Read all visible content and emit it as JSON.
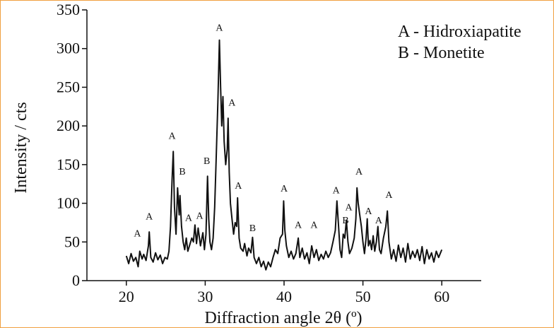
{
  "chart_data": {
    "type": "line",
    "xlabel": "Diffraction angle 2θ (º)",
    "ylabel": "Intensity / cts",
    "xlim": [
      15,
      65
    ],
    "ylim": [
      0,
      350
    ],
    "x_ticks": [
      20,
      30,
      40,
      50,
      60
    ],
    "y_ticks": [
      0,
      50,
      100,
      150,
      200,
      250,
      300,
      350
    ],
    "grid": false,
    "legend_position": "top-right",
    "legend": [
      "A - Hidroxiapatite",
      "B - Monetite"
    ],
    "series": [
      {
        "points": [
          [
            20.0,
            32
          ],
          [
            20.3,
            22
          ],
          [
            20.6,
            35
          ],
          [
            20.9,
            25
          ],
          [
            21.2,
            30
          ],
          [
            21.5,
            18
          ],
          [
            21.7,
            38
          ],
          [
            22.0,
            28
          ],
          [
            22.2,
            34
          ],
          [
            22.5,
            26
          ],
          [
            22.8,
            45
          ],
          [
            22.9,
            63
          ],
          [
            23.1,
            30
          ],
          [
            23.4,
            24
          ],
          [
            23.7,
            36
          ],
          [
            24.0,
            27
          ],
          [
            24.3,
            33
          ],
          [
            24.6,
            22
          ],
          [
            24.9,
            30
          ],
          [
            25.2,
            28
          ],
          [
            25.4,
            38
          ],
          [
            25.6,
            70
          ],
          [
            25.8,
            130
          ],
          [
            25.95,
            167
          ],
          [
            26.1,
            95
          ],
          [
            26.3,
            60
          ],
          [
            26.5,
            120
          ],
          [
            26.7,
            85
          ],
          [
            26.8,
            110
          ],
          [
            27.0,
            70
          ],
          [
            27.2,
            50
          ],
          [
            27.4,
            40
          ],
          [
            27.6,
            55
          ],
          [
            27.8,
            38
          ],
          [
            28.0,
            45
          ],
          [
            28.3,
            55
          ],
          [
            28.5,
            50
          ],
          [
            28.7,
            72
          ],
          [
            28.9,
            48
          ],
          [
            29.1,
            68
          ],
          [
            29.4,
            45
          ],
          [
            29.7,
            62
          ],
          [
            29.9,
            40
          ],
          [
            30.1,
            60
          ],
          [
            30.3,
            135
          ],
          [
            30.45,
            80
          ],
          [
            30.6,
            50
          ],
          [
            30.8,
            40
          ],
          [
            31.0,
            55
          ],
          [
            31.2,
            95
          ],
          [
            31.4,
            160
          ],
          [
            31.6,
            230
          ],
          [
            31.8,
            311
          ],
          [
            31.95,
            250
          ],
          [
            32.1,
            200
          ],
          [
            32.25,
            238
          ],
          [
            32.4,
            180
          ],
          [
            32.6,
            150
          ],
          [
            32.8,
            170
          ],
          [
            32.9,
            210
          ],
          [
            33.05,
            140
          ],
          [
            33.2,
            100
          ],
          [
            33.4,
            80
          ],
          [
            33.6,
            60
          ],
          [
            33.8,
            75
          ],
          [
            34.0,
            70
          ],
          [
            34.1,
            107
          ],
          [
            34.3,
            55
          ],
          [
            34.5,
            42
          ],
          [
            34.8,
            38
          ],
          [
            35.0,
            48
          ],
          [
            35.3,
            32
          ],
          [
            35.5,
            42
          ],
          [
            35.8,
            36
          ],
          [
            36.0,
            56
          ],
          [
            36.2,
            30
          ],
          [
            36.5,
            22
          ],
          [
            36.8,
            30
          ],
          [
            37.1,
            18
          ],
          [
            37.4,
            25
          ],
          [
            37.7,
            14
          ],
          [
            38.0,
            24
          ],
          [
            38.3,
            18
          ],
          [
            38.6,
            30
          ],
          [
            38.9,
            40
          ],
          [
            39.2,
            35
          ],
          [
            39.5,
            55
          ],
          [
            39.8,
            60
          ],
          [
            39.95,
            103
          ],
          [
            40.1,
            65
          ],
          [
            40.3,
            45
          ],
          [
            40.6,
            30
          ],
          [
            40.9,
            38
          ],
          [
            41.2,
            28
          ],
          [
            41.5,
            35
          ],
          [
            41.8,
            55
          ],
          [
            42.0,
            30
          ],
          [
            42.3,
            42
          ],
          [
            42.6,
            28
          ],
          [
            42.9,
            36
          ],
          [
            43.2,
            22
          ],
          [
            43.5,
            45
          ],
          [
            43.8,
            30
          ],
          [
            44.1,
            40
          ],
          [
            44.4,
            26
          ],
          [
            44.7,
            34
          ],
          [
            45.0,
            28
          ],
          [
            45.3,
            38
          ],
          [
            45.6,
            30
          ],
          [
            45.9,
            36
          ],
          [
            46.2,
            50
          ],
          [
            46.5,
            65
          ],
          [
            46.7,
            103
          ],
          [
            46.9,
            72
          ],
          [
            47.1,
            40
          ],
          [
            47.3,
            30
          ],
          [
            47.5,
            60
          ],
          [
            47.7,
            55
          ],
          [
            47.9,
            78
          ],
          [
            48.1,
            50
          ],
          [
            48.3,
            35
          ],
          [
            48.6,
            42
          ],
          [
            48.9,
            55
          ],
          [
            49.1,
            80
          ],
          [
            49.25,
            120
          ],
          [
            49.4,
            100
          ],
          [
            49.6,
            85
          ],
          [
            49.8,
            70
          ],
          [
            50.0,
            50
          ],
          [
            50.2,
            35
          ],
          [
            50.4,
            55
          ],
          [
            50.55,
            80
          ],
          [
            50.7,
            45
          ],
          [
            50.9,
            52
          ],
          [
            51.1,
            40
          ],
          [
            51.3,
            58
          ],
          [
            51.5,
            38
          ],
          [
            51.7,
            50
          ],
          [
            51.9,
            70
          ],
          [
            52.1,
            40
          ],
          [
            52.3,
            35
          ],
          [
            52.6,
            55
          ],
          [
            52.9,
            70
          ],
          [
            53.1,
            90
          ],
          [
            53.3,
            50
          ],
          [
            53.6,
            28
          ],
          [
            53.9,
            40
          ],
          [
            54.2,
            25
          ],
          [
            54.5,
            46
          ],
          [
            54.8,
            30
          ],
          [
            55.1,
            42
          ],
          [
            55.4,
            24
          ],
          [
            55.7,
            48
          ],
          [
            56.0,
            28
          ],
          [
            56.3,
            38
          ],
          [
            56.6,
            30
          ],
          [
            56.9,
            40
          ],
          [
            57.2,
            26
          ],
          [
            57.5,
            44
          ],
          [
            57.8,
            22
          ],
          [
            58.1,
            40
          ],
          [
            58.4,
            28
          ],
          [
            58.7,
            36
          ],
          [
            59.0,
            24
          ],
          [
            59.3,
            38
          ],
          [
            59.6,
            30
          ],
          [
            60.0,
            40
          ]
        ]
      }
    ],
    "annotations": [
      {
        "text": "A",
        "x": 21.4,
        "y": 57
      },
      {
        "text": "A",
        "x": 22.9,
        "y": 79
      },
      {
        "text": "A",
        "x": 25.8,
        "y": 183
      },
      {
        "text": "B",
        "x": 27.1,
        "y": 137
      },
      {
        "text": "A",
        "x": 27.9,
        "y": 77
      },
      {
        "text": "A",
        "x": 29.3,
        "y": 80
      },
      {
        "text": "B",
        "x": 30.2,
        "y": 151
      },
      {
        "text": "A",
        "x": 31.8,
        "y": 323
      },
      {
        "text": "A",
        "x": 33.4,
        "y": 226
      },
      {
        "text": "A",
        "x": 34.2,
        "y": 119
      },
      {
        "text": "B",
        "x": 36.0,
        "y": 64
      },
      {
        "text": "A",
        "x": 40.0,
        "y": 115
      },
      {
        "text": "A",
        "x": 41.8,
        "y": 68
      },
      {
        "text": "A",
        "x": 43.8,
        "y": 68
      },
      {
        "text": "A",
        "x": 46.6,
        "y": 113
      },
      {
        "text": "B",
        "x": 47.8,
        "y": 74
      },
      {
        "text": "A",
        "x": 48.2,
        "y": 91
      },
      {
        "text": "A",
        "x": 49.5,
        "y": 137
      },
      {
        "text": "A",
        "x": 50.7,
        "y": 86
      },
      {
        "text": "A",
        "x": 52.0,
        "y": 74
      },
      {
        "text": "A",
        "x": 53.3,
        "y": 107
      }
    ],
    "colors": {
      "line": "#111111",
      "axis": "#111111",
      "frame": "#f0a040"
    }
  }
}
